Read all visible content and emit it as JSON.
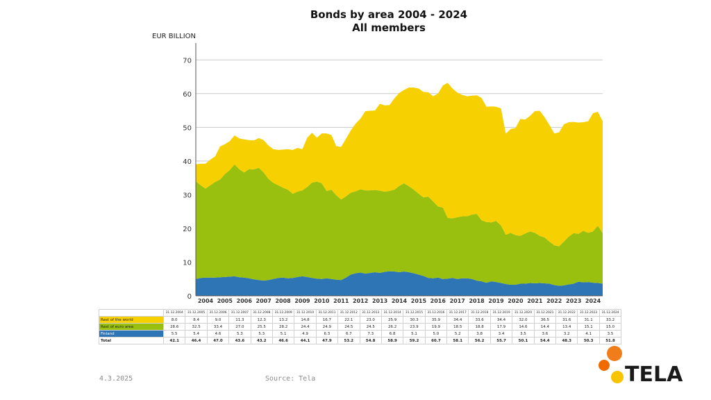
{
  "chart_data": {
    "type": "area",
    "stacked": true,
    "title": "Bonds by area 2004 - 2024",
    "subtitle": "All members",
    "ylabel": "EUR BILLION",
    "ylim": [
      0,
      75
    ],
    "yticks": [
      0,
      10,
      20,
      30,
      40,
      50,
      60,
      70
    ],
    "xlim": [
      2004,
      2025
    ],
    "xticks": [
      "2004",
      "2005",
      "2006",
      "2007",
      "2008",
      "2009",
      "2010",
      "2011",
      "2012",
      "2013",
      "2014",
      "2015",
      "2016",
      "2017",
      "2018",
      "2019",
      "2020",
      "2021",
      "2022",
      "2023",
      "2024"
    ],
    "grid": true,
    "colors": {
      "finland": "#2e75b6",
      "euro": "#99bf0f",
      "world": "#f6d000"
    },
    "series": [
      {
        "key": "finland",
        "name": "Finland",
        "x": [
          2004,
          2004.25,
          2004.5,
          2004.75,
          2005,
          2005.25,
          2005.5,
          2005.75,
          2006,
          2006.25,
          2006.5,
          2006.75,
          2007,
          2007.25,
          2007.5,
          2007.75,
          2008,
          2008.25,
          2008.5,
          2008.75,
          2009,
          2009.25,
          2009.5,
          2009.75,
          2010,
          2010.25,
          2010.5,
          2010.75,
          2011,
          2011.25,
          2011.5,
          2011.75,
          2012,
          2012.25,
          2012.5,
          2012.75,
          2013,
          2013.25,
          2013.5,
          2013.75,
          2014,
          2014.25,
          2014.5,
          2014.75,
          2015,
          2015.25,
          2015.5,
          2015.75,
          2016,
          2016.25,
          2016.5,
          2016.75,
          2017,
          2017.25,
          2017.5,
          2017.75,
          2018,
          2018.25,
          2018.5,
          2018.75,
          2019,
          2019.25,
          2019.5,
          2019.75,
          2020,
          2020.25,
          2020.5,
          2020.75,
          2021,
          2021.25,
          2021.5,
          2021.75,
          2022,
          2022.25,
          2022.5,
          2022.75,
          2023,
          2023.25,
          2023.5,
          2023.75,
          2024,
          2024.25,
          2024.5,
          2024.75,
          2025
        ],
        "values": [
          5.0,
          5.3,
          5.4,
          5.4,
          5.4,
          5.5,
          5.6,
          5.7,
          5.8,
          5.5,
          5.4,
          5.2,
          4.9,
          4.7,
          4.5,
          4.7,
          5.0,
          5.3,
          5.4,
          5.2,
          5.3,
          5.6,
          5.8,
          5.6,
          5.3,
          5.1,
          5.0,
          5.2,
          5.0,
          4.8,
          4.7,
          5.4,
          6.3,
          6.7,
          6.9,
          6.6,
          6.8,
          7.0,
          6.8,
          7.1,
          7.3,
          7.2,
          7.0,
          7.2,
          7.0,
          6.7,
          6.3,
          5.9,
          5.3,
          5.2,
          5.4,
          5.0,
          5.1,
          5.3,
          5.0,
          5.2,
          5.2,
          5.0,
          4.5,
          4.3,
          3.9,
          4.3,
          4.1,
          3.8,
          3.5,
          3.3,
          3.3,
          3.6,
          3.6,
          3.8,
          3.7,
          3.8,
          3.7,
          3.6,
          3.2,
          3.0,
          3.1,
          3.4,
          3.6,
          4.2,
          4.0,
          4.1,
          3.9,
          3.8,
          3.6
        ]
      },
      {
        "key": "euro",
        "name": "Rest of euro area",
        "x": [
          2004,
          2004.25,
          2004.5,
          2004.75,
          2005,
          2005.25,
          2005.5,
          2005.75,
          2006,
          2006.25,
          2006.5,
          2006.75,
          2007,
          2007.25,
          2007.5,
          2007.75,
          2008,
          2008.25,
          2008.5,
          2008.75,
          2009,
          2009.25,
          2009.5,
          2009.75,
          2010,
          2010.25,
          2010.5,
          2010.75,
          2011,
          2011.25,
          2011.5,
          2011.75,
          2012,
          2012.25,
          2012.5,
          2012.75,
          2013,
          2013.25,
          2013.5,
          2013.75,
          2014,
          2014.25,
          2014.5,
          2014.75,
          2015,
          2015.25,
          2015.5,
          2015.75,
          2016,
          2016.25,
          2016.5,
          2016.75,
          2017,
          2017.25,
          2017.5,
          2017.75,
          2018,
          2018.25,
          2018.5,
          2018.75,
          2019,
          2019.25,
          2019.5,
          2019.75,
          2020,
          2020.25,
          2020.5,
          2020.75,
          2021,
          2021.25,
          2021.5,
          2021.75,
          2022,
          2022.25,
          2022.5,
          2022.75,
          2023,
          2023.25,
          2023.5,
          2023.75,
          2024,
          2024.25,
          2024.5,
          2024.75,
          2025
        ],
        "values": [
          29.0,
          27.5,
          26.4,
          27.4,
          28.4,
          29.0,
          30.5,
          31.6,
          33.2,
          32.0,
          31.2,
          32.4,
          32.6,
          33.3,
          32.1,
          30.0,
          28.5,
          27.5,
          26.7,
          26.3,
          25.0,
          25.3,
          25.5,
          26.7,
          28.3,
          28.8,
          28.4,
          25.9,
          26.5,
          25.0,
          23.9,
          24.1,
          24.3,
          24.3,
          24.7,
          24.7,
          24.5,
          24.4,
          24.4,
          23.8,
          23.8,
          24.3,
          25.6,
          26.2,
          25.5,
          24.8,
          24.0,
          23.3,
          24.1,
          22.8,
          21.1,
          21.2,
          18.0,
          17.7,
          18.3,
          18.4,
          18.4,
          19.1,
          19.8,
          18.1,
          18.0,
          17.5,
          18.1,
          17.1,
          14.6,
          15.4,
          14.7,
          14.2,
          14.9,
          15.3,
          15.0,
          14.0,
          13.6,
          12.5,
          11.8,
          11.7,
          13.0,
          14.2,
          15.0,
          14.2,
          15.3,
          14.6,
          15.2,
          17.0,
          15.0
        ]
      },
      {
        "key": "world",
        "name": "Rest of the world",
        "x": [
          2004,
          2004.25,
          2004.5,
          2004.75,
          2005,
          2005.25,
          2005.5,
          2005.75,
          2006,
          2006.25,
          2006.5,
          2006.75,
          2007,
          2007.25,
          2007.5,
          2007.75,
          2008,
          2008.25,
          2008.5,
          2008.75,
          2009,
          2009.25,
          2009.5,
          2009.75,
          2010,
          2010.25,
          2010.5,
          2010.75,
          2011,
          2011.25,
          2011.5,
          2011.75,
          2012,
          2012.25,
          2012.5,
          2012.75,
          2013,
          2013.25,
          2013.5,
          2013.75,
          2014,
          2014.25,
          2014.5,
          2014.75,
          2015,
          2015.25,
          2015.5,
          2015.75,
          2016,
          2016.25,
          2016.5,
          2016.75,
          2017,
          2017.25,
          2017.5,
          2017.75,
          2018,
          2018.25,
          2018.5,
          2018.75,
          2019,
          2019.25,
          2019.5,
          2019.75,
          2020,
          2020.25,
          2020.5,
          2020.75,
          2021,
          2021.25,
          2021.5,
          2021.75,
          2022,
          2022.25,
          2022.5,
          2022.75,
          2023,
          2023.25,
          2023.5,
          2023.75,
          2024,
          2024.25,
          2024.5,
          2024.75,
          2025
        ],
        "values": [
          5.0,
          6.4,
          7.4,
          7.6,
          7.6,
          9.8,
          8.9,
          8.6,
          8.6,
          9.2,
          9.8,
          8.6,
          8.6,
          8.8,
          9.6,
          9.9,
          10.0,
          10.5,
          11.3,
          12.0,
          13.0,
          13.0,
          12.2,
          14.6,
          14.8,
          13.0,
          14.8,
          17.1,
          16.2,
          14.6,
          15.6,
          17.1,
          18.5,
          20.1,
          21.0,
          23.5,
          23.6,
          23.6,
          25.8,
          25.6,
          25.5,
          27.1,
          27.6,
          27.7,
          29.3,
          30.3,
          31.2,
          31.3,
          31.0,
          31.2,
          33.5,
          36.2,
          40.1,
          38.5,
          37.0,
          36.0,
          35.6,
          35.3,
          35.2,
          36.3,
          34.2,
          34.4,
          33.9,
          34.7,
          30.0,
          30.8,
          31.8,
          34.7,
          33.8,
          34.3,
          36.1,
          37.1,
          35.7,
          34.6,
          33.2,
          33.8,
          34.8,
          33.9,
          33.0,
          33.0,
          32.2,
          33.1,
          35.1,
          33.8,
          33.2
        ]
      }
    ],
    "table": {
      "dates": [
        "31.12.2004",
        "31.12.2005",
        "31.12.2006",
        "31.12.2007",
        "31.12.2008",
        "31.12.2009",
        "31.12.2010",
        "31.12.2011",
        "31.12.2012",
        "31.12.2013",
        "31.12.2014",
        "31.12.2015",
        "31.12.2016",
        "31.12.2017",
        "31.12.2018",
        "31.12.2019",
        "31.12.2020",
        "31.12.2021",
        "31.12.2022",
        "31.12.2023",
        "31.12.2024"
      ],
      "rows": [
        {
          "key": "world",
          "label": "Rest of the world",
          "values": [
            "8.0",
            "8.4",
            "9.0",
            "11.3",
            "12.3",
            "13.2",
            "14.8",
            "16.7",
            "22.1",
            "23.0",
            "25.9",
            "30.3",
            "35.9",
            "34.4",
            "33.6",
            "34.4",
            "32.0",
            "36.5",
            "31.6",
            "31.1",
            "33.2"
          ]
        },
        {
          "key": "euro",
          "label": "Rest of euro area",
          "values": [
            "28.6",
            "32.5",
            "33.4",
            "27.0",
            "25.5",
            "28.2",
            "24.4",
            "24.9",
            "24.5",
            "24.5",
            "26.2",
            "23.9",
            "19.9",
            "18.5",
            "18.8",
            "17.9",
            "14.6",
            "14.4",
            "13.4",
            "15.1",
            "15.0"
          ]
        },
        {
          "key": "finland",
          "label": "Finland",
          "values": [
            "5.5",
            "5.4",
            "4.6",
            "5.3",
            "5.3",
            "5.1",
            "4.9",
            "6.3",
            "6.7",
            "7.3",
            "6.8",
            "5.1",
            "5.0",
            "5.2",
            "3.8",
            "3.4",
            "3.5",
            "3.6",
            "3.2",
            "4.1",
            "3.5"
          ]
        },
        {
          "key": "total",
          "label": "Total",
          "values": [
            "42.1",
            "46.4",
            "47.0",
            "43.6",
            "43.2",
            "46.6",
            "44.1",
            "47.9",
            "53.2",
            "54.8",
            "58.9",
            "59.2",
            "60.7",
            "58.1",
            "56.2",
            "55.7",
            "50.1",
            "54.4",
            "48.3",
            "50.3",
            "51.8"
          ]
        }
      ]
    }
  },
  "footer": {
    "date": "4.3.2025",
    "source": "Source: Tela"
  },
  "logo": {
    "text": "TELA",
    "colors": [
      "#f07d1a",
      "#ef6a00",
      "#f8c400"
    ]
  }
}
